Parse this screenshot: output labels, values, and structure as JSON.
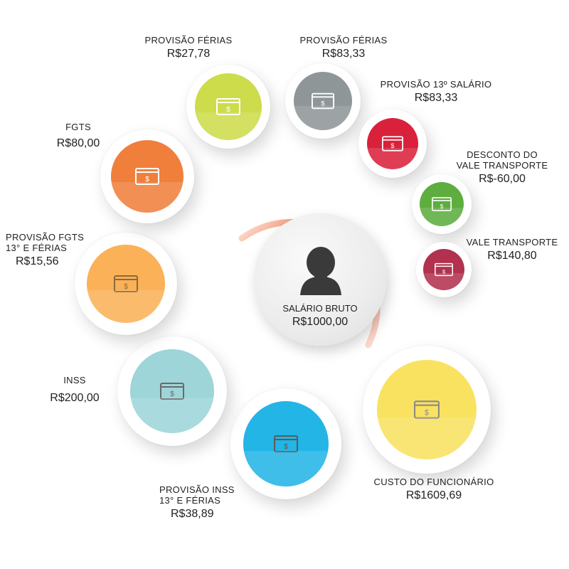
{
  "center": {
    "title": "SALÁRIO BRUTO",
    "value": "R$1000,00",
    "icon": "person-silhouette-icon"
  },
  "items": [
    {
      "key": "provisao_ferias_1",
      "title": "PROVISÃO FÉRIAS",
      "value": "R$27,78",
      "color": "#cddc4a"
    },
    {
      "key": "provisao_ferias_2",
      "title": "PROVISÃO FÉRIAS",
      "value": "R$83,33",
      "color": "#8f9698"
    },
    {
      "key": "provisao_13",
      "title": "PROVISÃO 13º SALÁRIO",
      "value": "R$83,33",
      "color": "#d9213b"
    },
    {
      "key": "desconto_vt",
      "title_line1": "DESCONTO DO",
      "title_line2": "VALE TRANSPORTE",
      "value": "R$-60,00",
      "color": "#5ead3e"
    },
    {
      "key": "vale_transporte",
      "title": "VALE TRANSPORTE",
      "value": "R$140,80",
      "color": "#b2314f"
    },
    {
      "key": "custo_funcionario",
      "title": "CUSTO DO FUNCIONÁRIO",
      "value": "R$1609,69",
      "color": "#f9e25f"
    },
    {
      "key": "provisao_inss",
      "title_line1": "PROVISÃO INSS",
      "title_line2": "13° E FÉRIAS",
      "value": "R$38,89",
      "color": "#22b5e6"
    },
    {
      "key": "inss",
      "title": "INSS",
      "value": "R$200,00",
      "color": "#9dd5d8"
    },
    {
      "key": "provisao_fgts",
      "title_line1": "PROVISÃO FGTS",
      "title_line2": "13° E FÉRIAS",
      "value": "R$15,56",
      "color": "#fbb157"
    },
    {
      "key": "fgts",
      "title": "FGTS",
      "value": "R$80,00",
      "color": "#f07f3c"
    }
  ],
  "colors": {
    "ring_orange": "#f2602f",
    "icon_stroke": "#ffffff",
    "person": "#3a3a3a"
  }
}
